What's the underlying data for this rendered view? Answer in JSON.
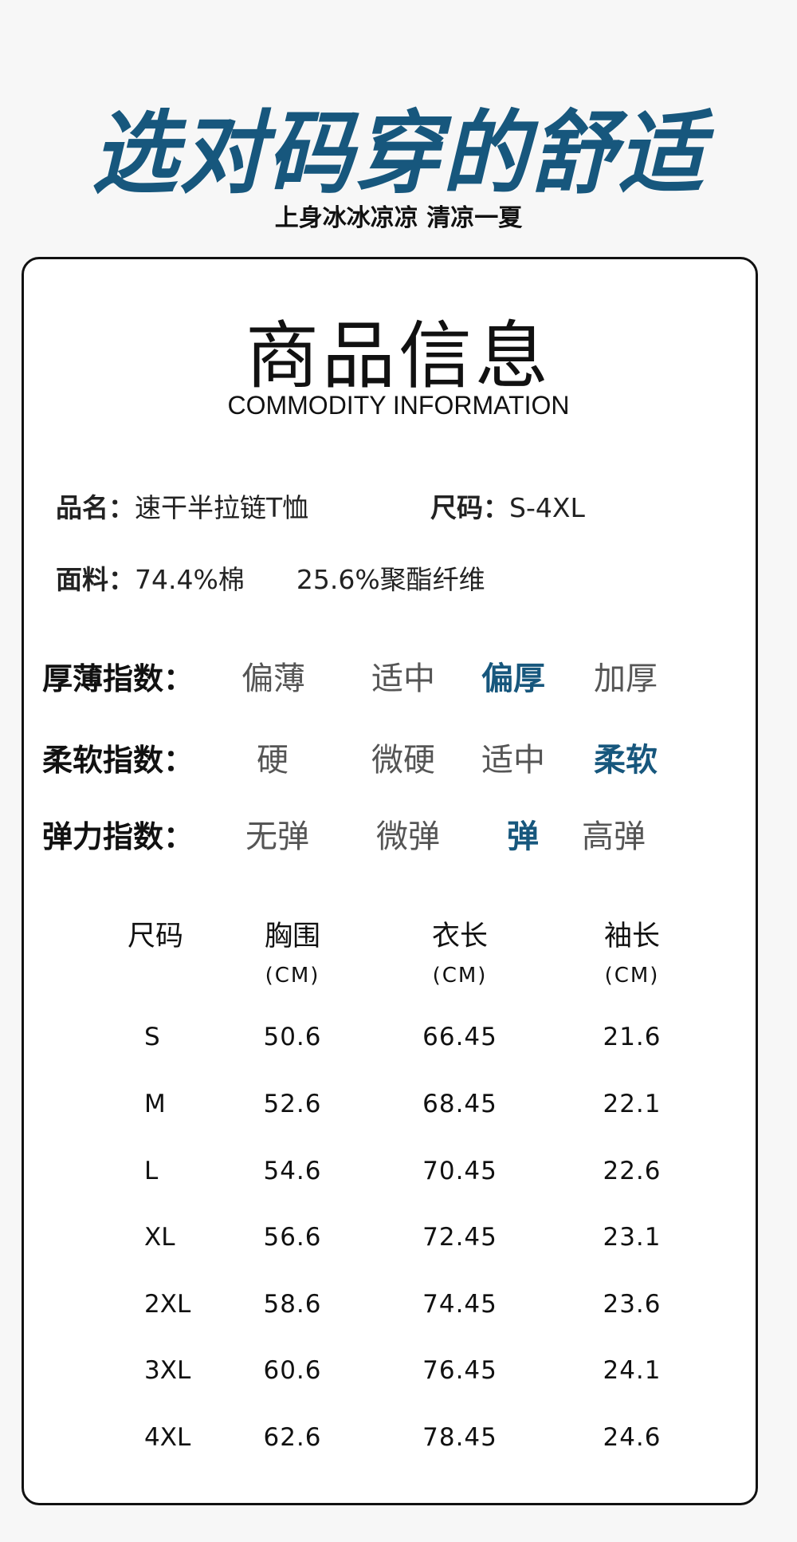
{
  "hero_title": "选对码穿的舒适",
  "subtitle": "上身冰冰凉凉 清凉一夏",
  "card": {
    "title": "商品信息",
    "title_en": "COMMODITY INFORMATION",
    "name_label": "品名：",
    "name_value": "速干半拉链T恤",
    "size_label": "尺码：",
    "size_value": "S-4XL",
    "fabric_label": "面料：",
    "fabric_value1": "74.4%棉",
    "fabric_value2": "25.6%聚酯纤维"
  },
  "indices": [
    {
      "label": "厚薄指数：",
      "options": [
        "偏薄",
        "适中",
        "偏厚",
        "加厚"
      ],
      "selected": 2
    },
    {
      "label": "柔软指数：",
      "options": [
        "硬",
        "微硬",
        "适中",
        "柔软"
      ],
      "selected": 3
    },
    {
      "label": "弹力指数：",
      "options": [
        "无弹",
        "微弹",
        "弹",
        "高弹"
      ],
      "selected": 2
    }
  ],
  "accent_color": "#17577d",
  "table": {
    "headers": [
      "尺码",
      "胸围",
      "衣长",
      "袖长"
    ],
    "units": [
      "",
      "(CM)",
      "(CM)",
      "(CM)"
    ],
    "rows": [
      [
        "S",
        "50.6",
        "66.45",
        "21.6"
      ],
      [
        "M",
        "52.6",
        "68.45",
        "22.1"
      ],
      [
        "L",
        "54.6",
        "70.45",
        "22.6"
      ],
      [
        "XL",
        "56.6",
        "72.45",
        "23.1"
      ],
      [
        "2XL",
        "58.6",
        "74.45",
        "23.6"
      ],
      [
        "3XL",
        "60.6",
        "76.45",
        "24.1"
      ],
      [
        "4XL",
        "62.6",
        "78.45",
        "24.6"
      ]
    ]
  }
}
